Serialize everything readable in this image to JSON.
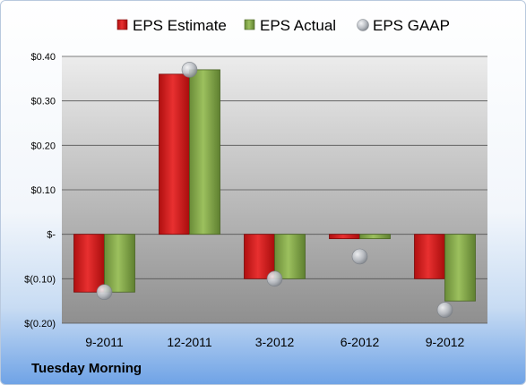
{
  "chart_data": {
    "type": "bar",
    "title": "",
    "xlabel": "",
    "ylabel": "",
    "categories": [
      "9-2011",
      "12-2011",
      "3-2012",
      "6-2012",
      "9-2012"
    ],
    "series": [
      {
        "name": "EPS Estimate",
        "kind": "bar",
        "color": "#d01818",
        "values": [
          -0.13,
          0.36,
          -0.1,
          -0.01,
          -0.1
        ]
      },
      {
        "name": "EPS Actual",
        "kind": "bar",
        "color": "#7fa048",
        "values": [
          -0.13,
          0.37,
          -0.1,
          -0.01,
          -0.15
        ]
      },
      {
        "name": "EPS GAAP",
        "kind": "marker",
        "color": "#b8bcc2",
        "values": [
          -0.13,
          0.37,
          -0.1,
          -0.05,
          -0.17
        ]
      }
    ],
    "ylim": [
      -0.2,
      0.4
    ],
    "yticks": [
      {
        "value": 0.4,
        "label": "$0.40"
      },
      {
        "value": 0.3,
        "label": "$0.30"
      },
      {
        "value": 0.2,
        "label": "$0.20"
      },
      {
        "value": 0.1,
        "label": "$0.10"
      },
      {
        "value": 0.0,
        "label": "$-"
      },
      {
        "value": -0.1,
        "label": "$(0.10)"
      },
      {
        "value": -0.2,
        "label": "$(0.20)"
      }
    ],
    "grid": true,
    "legend_position": "top"
  },
  "footer": {
    "company": "Tuesday Morning"
  }
}
